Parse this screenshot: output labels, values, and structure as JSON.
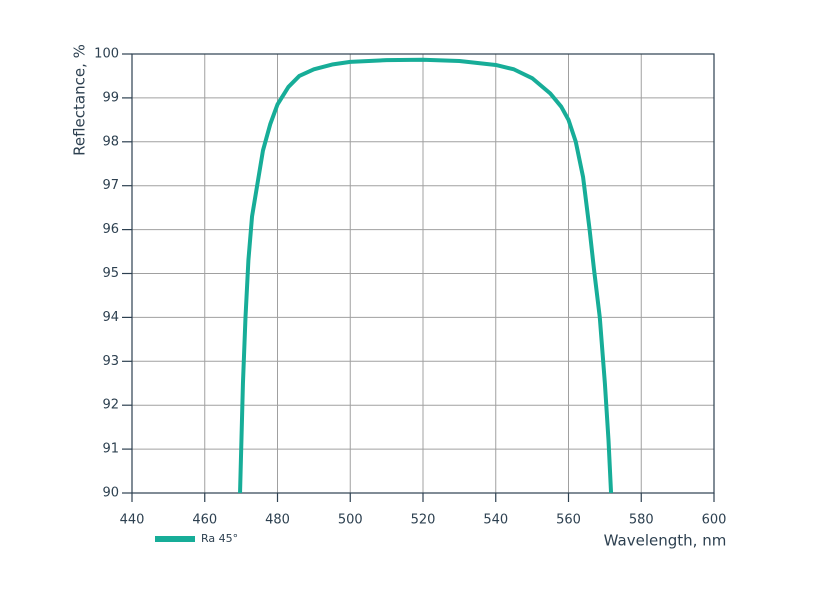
{
  "chart_data": {
    "type": "line",
    "x_label": "Wavelength, nm",
    "y_label": "Reflectance, %",
    "series": [
      {
        "name": "Ra 45°",
        "color": "#17ad98",
        "x": [
          469.7,
          470.5,
          471.2,
          472,
          473,
          474.4,
          476,
          478,
          480,
          483,
          486,
          490,
          495,
          500,
          510,
          520,
          530,
          540,
          545,
          550,
          555,
          558,
          560,
          562,
          564,
          565.8,
          567,
          568.6,
          570,
          571,
          571.7
        ],
        "values": [
          90,
          92.5,
          94,
          95.3,
          96.3,
          97,
          97.8,
          98.4,
          98.85,
          99.25,
          99.5,
          99.65,
          99.76,
          99.82,
          99.86,
          99.87,
          99.84,
          99.75,
          99.65,
          99.45,
          99.1,
          98.8,
          98.5,
          98,
          97.2,
          96,
          95.1,
          94,
          92.5,
          91.2,
          90
        ]
      }
    ],
    "xlim": [
      440,
      600
    ],
    "xticks": [
      440,
      460,
      480,
      500,
      520,
      540,
      560,
      580,
      600
    ],
    "ylim": [
      90,
      100
    ],
    "yticks": [
      90,
      91,
      92,
      93,
      94,
      95,
      96,
      97,
      98,
      99,
      100
    ],
    "grid": true
  }
}
